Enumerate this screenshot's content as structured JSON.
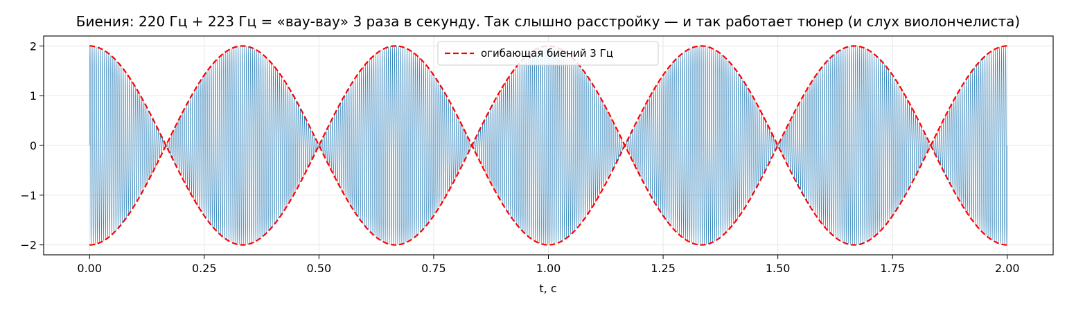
{
  "chart_data": {
    "type": "line",
    "title": "Биения: 220 Гц + 223 Гц = «вау-вау» 3 раза в секунду. Так слышно расстройку — и так работает тюнер (и слух виолончелиста)",
    "xlabel": "t, с",
    "ylabel": "",
    "xlim": [
      -0.1,
      2.1
    ],
    "ylim": [
      -2.2,
      2.2
    ],
    "x_ticks": [
      0.0,
      0.25,
      0.5,
      0.75,
      1.0,
      1.25,
      1.5,
      1.75,
      2.0
    ],
    "x_tick_labels": [
      "0.00",
      "0.25",
      "0.50",
      "0.75",
      "1.00",
      "1.25",
      "1.50",
      "1.75",
      "2.00"
    ],
    "y_ticks": [
      2,
      1,
      0,
      -1,
      -2
    ],
    "y_tick_labels": [
      "2",
      "1",
      "0",
      "−1",
      "−2"
    ],
    "grid": true,
    "legend_position": "top-center",
    "series": [
      {
        "name": "",
        "kind": "signal",
        "formula": "sin(2π·220·t) + sin(2π·223·t)",
        "f1": 220,
        "f2": 223,
        "t_range": [
          0,
          2
        ],
        "color": "#1f77b4",
        "style": "solid"
      },
      {
        "name": "огибающая биений 3 Гц",
        "kind": "envelope",
        "formula": "2·cos(π·3·t)",
        "beat_frequency": 3,
        "t_range": [
          0,
          2
        ],
        "color": "#ff0000",
        "style": "dashed"
      }
    ]
  }
}
